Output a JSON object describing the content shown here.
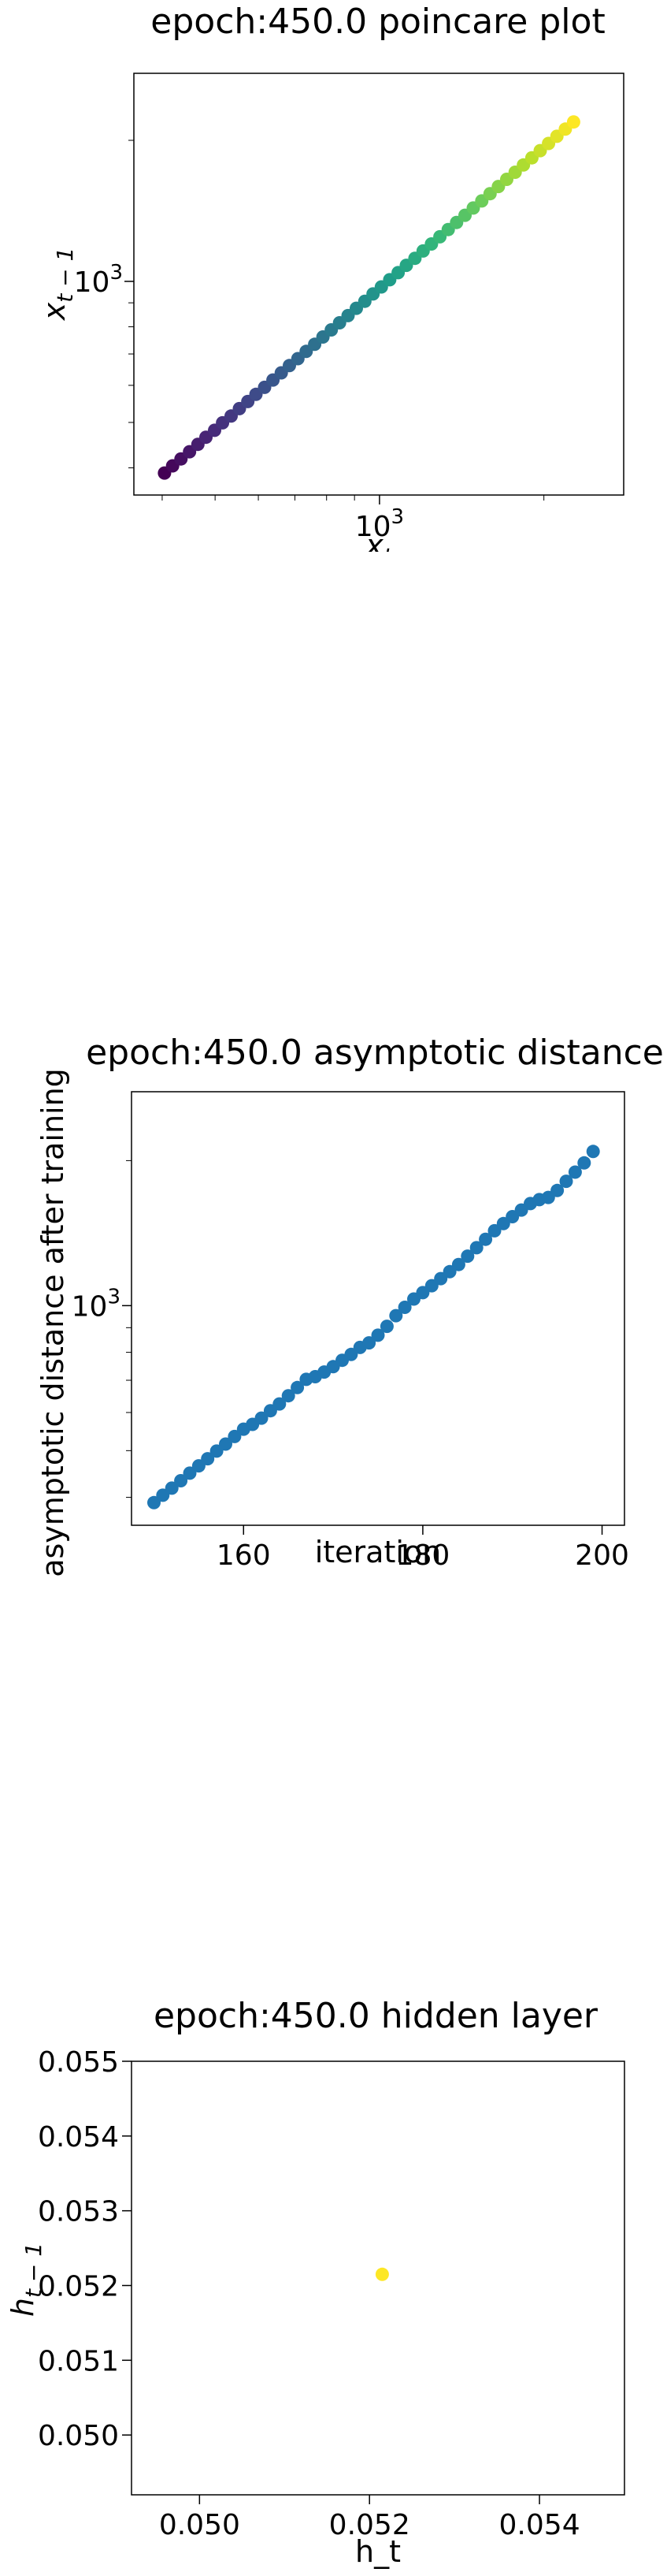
{
  "chart_data": [
    {
      "type": "scatter",
      "title": "epoch:450.0 poincare plot",
      "xlabel_base": "x",
      "xlabel_sub": "t",
      "ylabel_base": "x",
      "ylabel_sub": "t − 1",
      "xscale": "log",
      "yscale": "log",
      "xlim": [
        355,
        2800
      ],
      "ylim": [
        350,
        2780
      ],
      "x_tick_label": "10",
      "x_tick_exp": "3",
      "y_tick_label": "10",
      "y_tick_exp": "3",
      "colormap": "viridis",
      "grid": false,
      "x": [
        404,
        418,
        433,
        449,
        465,
        481,
        499,
        516,
        535,
        554,
        574,
        594,
        616,
        638,
        661,
        684,
        709,
        734,
        761,
        788,
        816,
        845,
        876,
        907,
        940,
        973,
        1008,
        1044,
        1082,
        1120,
        1161,
        1202,
        1245,
        1290,
        1336,
        1384,
        1434,
        1485,
        1539,
        1594,
        1651,
        1710,
        1772,
        1835,
        1901,
        1969,
        2040,
        2113,
        2189,
        2267
      ],
      "y": [
        390,
        404,
        418,
        433,
        449,
        465,
        481,
        499,
        516,
        535,
        554,
        574,
        594,
        616,
        638,
        661,
        684,
        709,
        734,
        761,
        788,
        816,
        845,
        876,
        907,
        940,
        973,
        1008,
        1044,
        1082,
        1120,
        1161,
        1202,
        1245,
        1290,
        1336,
        1384,
        1434,
        1485,
        1539,
        1594,
        1651,
        1710,
        1772,
        1835,
        1901,
        1969,
        2040,
        2113,
        2189
      ]
    },
    {
      "type": "scatter",
      "title": "epoch:450.0 asymptotic distance",
      "xlabel": "iteration",
      "ylabel": "asymptotic distance after training",
      "xscale": "linear",
      "yscale": "log",
      "xlim": [
        147.5,
        202.5
      ],
      "ylim": [
        350,
        2780
      ],
      "x_ticks": [
        160,
        180,
        200
      ],
      "y_tick_label": "10",
      "y_tick_exp": "3",
      "color": "#1f77b4",
      "grid": false,
      "x": [
        150,
        151,
        152,
        153,
        154,
        155,
        156,
        157,
        158,
        159,
        160,
        161,
        162,
        163,
        164,
        165,
        166,
        167,
        168,
        169,
        170,
        171,
        172,
        173,
        174,
        175,
        176,
        177,
        178,
        179,
        180,
        181,
        182,
        183,
        184,
        185,
        186,
        187,
        188,
        189,
        190,
        191,
        192,
        193,
        194,
        195,
        196,
        197,
        198,
        199
      ],
      "y": [
        390,
        404,
        418,
        433,
        449,
        465,
        481,
        499,
        516,
        535,
        554,
        567,
        584,
        605,
        625,
        650,
        676,
        703,
        712,
        728,
        747,
        770,
        792,
        819,
        837,
        868,
        906,
        953,
        992,
        1032,
        1064,
        1100,
        1138,
        1176,
        1217,
        1267,
        1319,
        1373,
        1430,
        1480,
        1530,
        1579,
        1629,
        1660,
        1677,
        1734,
        1812,
        1893,
        1978,
        2089
      ]
    },
    {
      "type": "scatter",
      "title": "epoch:450.0 hidden layer",
      "xlabel": "h_t",
      "ylabel_base": "h",
      "ylabel_sub": "t − 1",
      "xscale": "linear",
      "yscale": "linear",
      "xlim": [
        0.0492,
        0.055
      ],
      "ylim": [
        0.0492,
        0.055
      ],
      "x_ticks": [
        "0.050",
        "0.052",
        "0.054"
      ],
      "y_ticks": [
        "0.050",
        "0.051",
        "0.052",
        "0.053",
        "0.054",
        "0.055"
      ],
      "color": "#fde725",
      "grid": false,
      "x": [
        0.05215
      ],
      "y": [
        0.05215
      ]
    }
  ]
}
